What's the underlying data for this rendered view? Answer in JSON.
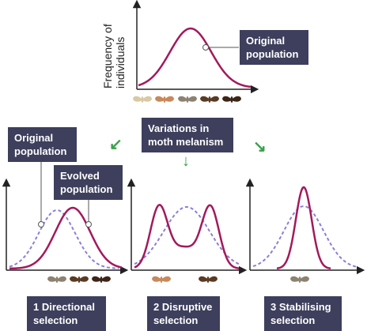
{
  "top_axis_label": [
    "Frequency of",
    "individuals"
  ],
  "labels": {
    "original_population_top": [
      "Original",
      "population"
    ],
    "variations": [
      "Variations in",
      "moth melanism"
    ],
    "original_population_left": [
      "Original",
      "population"
    ],
    "evolved_population": [
      "Evolved",
      "population"
    ],
    "directional": [
      "1 Directional",
      "selection"
    ],
    "disruptive": [
      "2 Disruptive",
      "selection"
    ],
    "stabilising": [
      "3 Stabilising",
      "selection"
    ]
  },
  "colors": {
    "curve": "#a3195b",
    "dashed": "#8a7fd8",
    "label_box": "#3d3f5c",
    "arrow": "#3aa14a",
    "moth_light": "#d9c9a4",
    "moth_orange": "#c9885a",
    "moth_grey": "#8d8270",
    "moth_dark": "#5a3a22",
    "moth_darkest": "#3d2416"
  },
  "icons": [
    "arrow-down-left-icon",
    "arrow-down-icon",
    "arrow-down-right-icon",
    "moth-icon"
  ]
}
